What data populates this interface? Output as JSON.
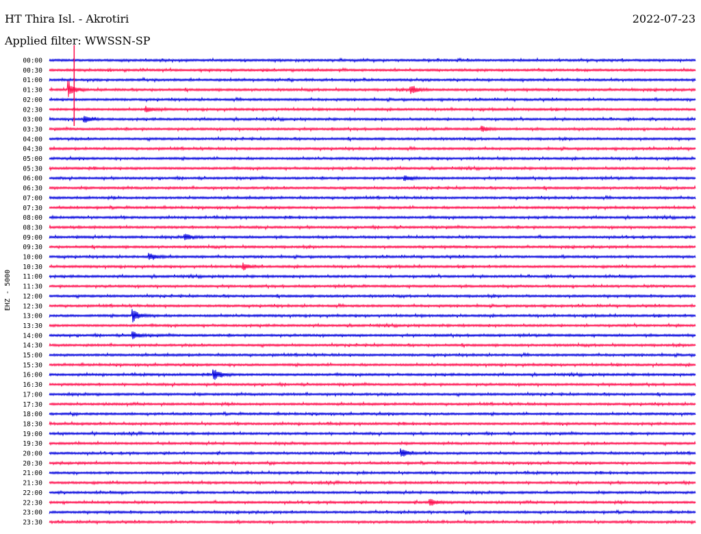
{
  "header": {
    "station": "HT Thira Isl. - Akrotiri",
    "date": "2022-07-23",
    "filter_label": "Applied filter: WWSSN-SP"
  },
  "colors": {
    "blue": "#0000dd",
    "red": "#ff0a4a"
  },
  "chart_data": {
    "type": "line",
    "title": "HT Thira Isl. - Akrotiri",
    "ylabel": "EHZ - 5000",
    "x": "time within 30-minute line",
    "grid": false,
    "legend": "none",
    "tick_labels": [
      "00:00",
      "00:30",
      "01:00",
      "01:30",
      "02:00",
      "02:30",
      "03:00",
      "03:30",
      "04:00",
      "04:30",
      "05:00",
      "05:30",
      "06:00",
      "06:30",
      "07:00",
      "07:30",
      "08:00",
      "08:30",
      "09:00",
      "09:30",
      "10:00",
      "10:30",
      "11:00",
      "11:30",
      "12:00",
      "12:30",
      "13:00",
      "13:30",
      "14:00",
      "14:30",
      "15:00",
      "15:30",
      "16:00",
      "16:30",
      "17:00",
      "17:30",
      "18:00",
      "18:30",
      "19:00",
      "19:30",
      "20:00",
      "20:30",
      "21:00",
      "21:30",
      "22:00",
      "22:30",
      "23:00",
      "23:30"
    ],
    "line_colors": [
      "blue",
      "red"
    ],
    "events": [
      {
        "line": 0,
        "pos": 0.03,
        "amp": 48,
        "color": "red"
      },
      {
        "line": 3,
        "pos": 0.03,
        "amp": 12
      },
      {
        "line": 3,
        "pos": 0.56,
        "amp": 6
      },
      {
        "line": 5,
        "pos": 0.15,
        "amp": 4
      },
      {
        "line": 6,
        "pos": 0.055,
        "amp": 5
      },
      {
        "line": 7,
        "pos": 0.67,
        "amp": 4
      },
      {
        "line": 12,
        "pos": 0.55,
        "amp": 4
      },
      {
        "line": 18,
        "pos": 0.21,
        "amp": 5
      },
      {
        "line": 20,
        "pos": 0.155,
        "amp": 5
      },
      {
        "line": 21,
        "pos": 0.3,
        "amp": 5
      },
      {
        "line": 26,
        "pos": 0.13,
        "amp": 9
      },
      {
        "line": 28,
        "pos": 0.13,
        "amp": 5
      },
      {
        "line": 32,
        "pos": 0.255,
        "amp": 8
      },
      {
        "line": 40,
        "pos": 0.545,
        "amp": 6
      },
      {
        "line": 45,
        "pos": 0.59,
        "amp": 5
      }
    ]
  }
}
